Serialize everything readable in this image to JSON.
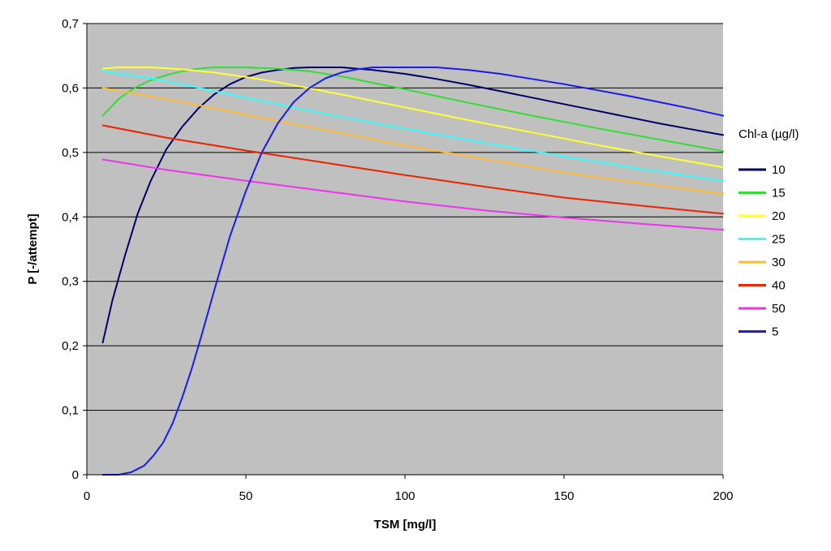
{
  "chart_data": {
    "type": "line",
    "xlabel": "TSM [mg/l]",
    "ylabel": "P [-/attempt]",
    "xlim": [
      0,
      200
    ],
    "ylim": [
      0,
      0.7
    ],
    "x_ticks": [
      0,
      50,
      100,
      150,
      200
    ],
    "y_ticks": [
      0,
      0.1,
      0.2,
      0.3,
      0.4,
      0.5,
      0.6,
      0.7
    ],
    "x_tick_labels": [
      "0",
      "50",
      "100",
      "150",
      "200"
    ],
    "y_tick_labels": [
      "0",
      "0,1",
      "0,2",
      "0,3",
      "0,4",
      "0,5",
      "0,6",
      "0,7"
    ],
    "grid": "horizontal",
    "plot_background": "#c0c0c0",
    "legend": {
      "title": "Chl-a (µg/l)",
      "placement": "right"
    },
    "series": [
      {
        "name": "10",
        "color": "#000066",
        "x": [
          5,
          8,
          12,
          16,
          20,
          25,
          30,
          35,
          40,
          45,
          50,
          55,
          60,
          65,
          70,
          75,
          80,
          90,
          100,
          110,
          120,
          130,
          140,
          150,
          160,
          170,
          180,
          190,
          200
        ],
        "y": [
          0.205,
          0.27,
          0.34,
          0.405,
          0.455,
          0.505,
          0.54,
          0.568,
          0.59,
          0.606,
          0.617,
          0.624,
          0.628,
          0.631,
          0.632,
          0.632,
          0.632,
          0.628,
          0.622,
          0.614,
          0.605,
          0.595,
          0.585,
          0.575,
          0.565,
          0.555,
          0.545,
          0.536,
          0.527
        ]
      },
      {
        "name": "15",
        "color": "#33dd33",
        "x": [
          5,
          10,
          15,
          20,
          25,
          30,
          35,
          40,
          45,
          50,
          60,
          70,
          80,
          90,
          100,
          120,
          140,
          160,
          180,
          200
        ],
        "y": [
          0.557,
          0.583,
          0.6,
          0.612,
          0.62,
          0.626,
          0.63,
          0.632,
          0.632,
          0.632,
          0.63,
          0.626,
          0.618,
          0.608,
          0.598,
          0.577,
          0.557,
          0.538,
          0.52,
          0.502
        ]
      },
      {
        "name": "20",
        "color": "#ffff33",
        "x": [
          5,
          10,
          20,
          30,
          40,
          50,
          60,
          80,
          100,
          120,
          140,
          160,
          180,
          200
        ],
        "y": [
          0.63,
          0.632,
          0.632,
          0.629,
          0.624,
          0.617,
          0.609,
          0.59,
          0.57,
          0.55,
          0.531,
          0.512,
          0.494,
          0.477
        ]
      },
      {
        "name": "25",
        "color": "#33ffff",
        "x": [
          5,
          25,
          50,
          75,
          100,
          125,
          150,
          175,
          200
        ],
        "y": [
          0.627,
          0.611,
          0.585,
          0.56,
          0.537,
          0.515,
          0.494,
          0.474,
          0.456
        ]
      },
      {
        "name": "30",
        "color": "#ffbb33",
        "x": [
          5,
          25,
          50,
          75,
          100,
          125,
          150,
          175,
          200
        ],
        "y": [
          0.6,
          0.583,
          0.559,
          0.535,
          0.511,
          0.49,
          0.469,
          0.452,
          0.436
        ]
      },
      {
        "name": "40",
        "color": "#ee2200",
        "x": [
          5,
          25,
          50,
          75,
          100,
          125,
          150,
          175,
          200
        ],
        "y": [
          0.542,
          0.523,
          0.503,
          0.484,
          0.465,
          0.447,
          0.43,
          0.417,
          0.405
        ]
      },
      {
        "name": "50",
        "color": "#ee33ee",
        "x": [
          5,
          25,
          50,
          75,
          100,
          125,
          150,
          175,
          200
        ],
        "y": [
          0.489,
          0.473,
          0.456,
          0.44,
          0.424,
          0.41,
          0.399,
          0.389,
          0.38
        ]
      },
      {
        "name": "5",
        "color": "#1a1aee",
        "x": [
          5,
          10,
          14,
          18,
          21,
          24,
          27,
          30,
          33,
          36,
          40,
          45,
          50,
          55,
          60,
          65,
          70,
          75,
          80,
          85,
          90,
          95,
          100,
          105,
          110,
          120,
          130,
          140,
          150,
          160,
          170,
          180,
          190,
          200
        ],
        "y": [
          0,
          0,
          0.004,
          0.014,
          0.03,
          0.05,
          0.08,
          0.12,
          0.165,
          0.215,
          0.285,
          0.37,
          0.44,
          0.5,
          0.545,
          0.578,
          0.6,
          0.615,
          0.624,
          0.629,
          0.632,
          0.632,
          0.632,
          0.632,
          0.632,
          0.628,
          0.622,
          0.614,
          0.606,
          0.597,
          0.588,
          0.578,
          0.568,
          0.557
        ]
      }
    ]
  }
}
